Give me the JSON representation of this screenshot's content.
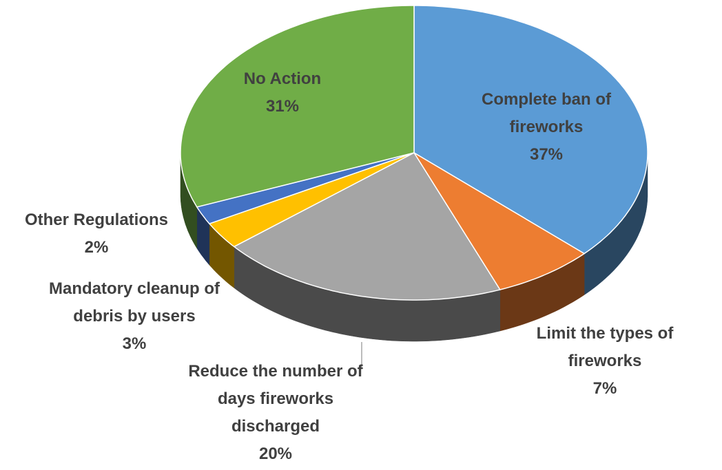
{
  "chart_data": {
    "type": "pie",
    "categories": [
      "Complete ban of fireworks",
      "Limit the types of fireworks",
      "Reduce the number of days fireworks discharged",
      "Mandatory cleanup of debris by users",
      "Other Regulations",
      "No Action"
    ],
    "values": [
      37,
      7,
      20,
      3,
      2,
      31
    ],
    "value_labels": [
      "37%",
      "7%",
      "20%",
      "3%",
      "2%",
      "31%"
    ],
    "colors": [
      "#5b9bd5",
      "#ed7d31",
      "#a5a5a5",
      "#ffc000",
      "#4472c4",
      "#70ad47"
    ]
  }
}
